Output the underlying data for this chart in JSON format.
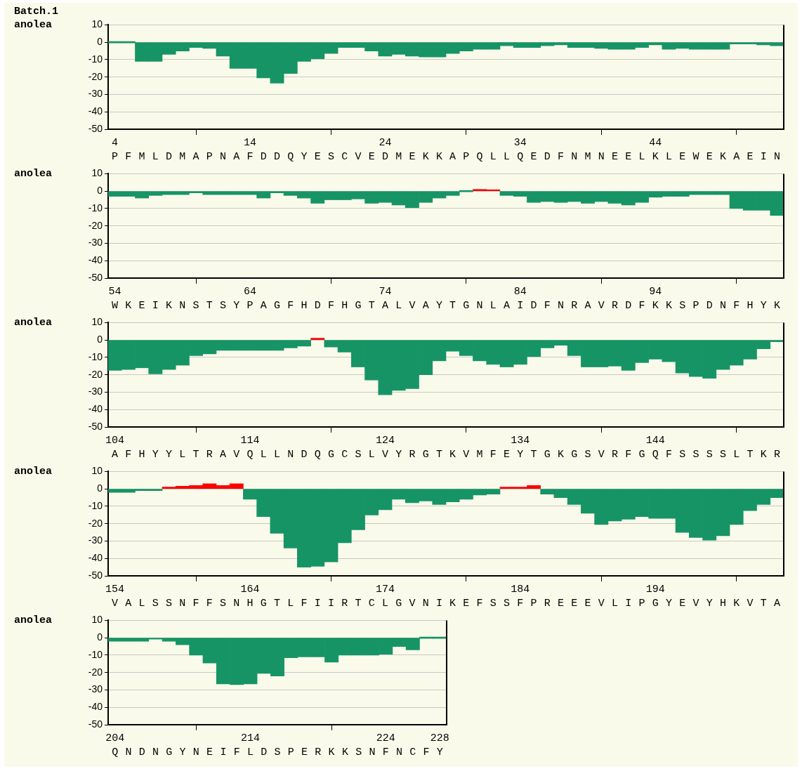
{
  "chart_data": [
    {
      "type": "bar",
      "title": "Batch.1",
      "ylabel": "anolea",
      "grid": "y",
      "categories": [
        "P",
        "F",
        "M",
        "L",
        "D",
        "M",
        "A",
        "P",
        "N",
        "A",
        "F",
        "D",
        "D",
        "Q",
        "Y",
        "E",
        "S",
        "C",
        "V",
        "E",
        "D",
        "M",
        "E",
        "K",
        "K",
        "A",
        "P",
        "Q",
        "L",
        "L",
        "Q",
        "E",
        "D",
        "F",
        "N",
        "M",
        "N",
        "E",
        "E",
        "L",
        "K",
        "L",
        "E",
        "W",
        "E",
        "K",
        "A",
        "E",
        "I",
        "N"
      ],
      "values": [
        0,
        0,
        -11,
        -11,
        -7,
        -5,
        -3,
        -3.5,
        -8,
        -15,
        -15,
        -20.5,
        -23.5,
        -18,
        -11,
        -9.5,
        -6.5,
        -3,
        -3,
        -5,
        -8,
        -7,
        -8,
        -8.5,
        -8.5,
        -6.5,
        -5,
        -4,
        -4,
        -2,
        -3,
        -3,
        -2,
        -1.5,
        -3,
        -3,
        -3.5,
        -4,
        -4,
        -3,
        -1.5,
        -4,
        -3.5,
        -4,
        -4,
        -4,
        -1,
        -1,
        -1.5,
        -2
      ],
      "colors": [
        "#169466",
        "#169466",
        "#169466",
        "#169466",
        "#169466",
        "#169466",
        "#169466",
        "#169466",
        "#169466",
        "#169466",
        "#169466",
        "#169466",
        "#169466",
        "#169466",
        "#169466",
        "#169466",
        "#169466",
        "#169466",
        "#169466",
        "#169466",
        "#169466",
        "#169466",
        "#169466",
        "#169466",
        "#169466",
        "#169466",
        "#169466",
        "#169466",
        "#169466",
        "#169466",
        "#169466",
        "#169466",
        "#169466",
        "#169466",
        "#169466",
        "#169466",
        "#169466",
        "#169466",
        "#169466",
        "#169466",
        "#169466",
        "#169466",
        "#169466",
        "#169466",
        "#169466",
        "#169466",
        "#169466",
        "#169466",
        "#169466",
        "#169466"
      ],
      "x2lim": [
        3.5,
        53.5
      ],
      "x2ticks": [
        4,
        {
          "value": 10,
          "label": null
        },
        14,
        {
          "value": 20,
          "label": null
        },
        24,
        {
          "value": 30,
          "label": null
        },
        34,
        {
          "value": 40,
          "label": null
        },
        44,
        {
          "value": 50,
          "label": null
        }
      ],
      "ylim": [
        -50,
        10
      ],
      "yticks": [
        -50,
        -40,
        -30,
        -20,
        -10,
        0,
        10
      ]
    },
    {
      "type": "bar",
      "ylabel": "anolea",
      "grid": "y",
      "categories": [
        "W",
        "K",
        "E",
        "I",
        "K",
        "N",
        "S",
        "T",
        "S",
        "Y",
        "P",
        "A",
        "G",
        "F",
        "H",
        "D",
        "F",
        "H",
        "G",
        "T",
        "A",
        "L",
        "V",
        "A",
        "Y",
        "T",
        "G",
        "N",
        "L",
        "A",
        "I",
        "D",
        "F",
        "N",
        "R",
        "A",
        "V",
        "R",
        "D",
        "F",
        "K",
        "K",
        "S",
        "P",
        "D",
        "N",
        "F",
        "H",
        "Y",
        "K"
      ],
      "values": [
        -3,
        -3,
        -4,
        -2.5,
        -2,
        -2,
        -1,
        -2,
        -2,
        -2,
        -2,
        -4,
        -1,
        -2.5,
        -4,
        -7,
        -5,
        -5,
        -4.5,
        -7,
        -6.5,
        -8,
        -9.5,
        -6.5,
        -4,
        -2.5,
        0,
        1,
        0.5,
        -2.5,
        -3,
        -6.5,
        -6,
        -6.5,
        -6,
        -7,
        -6,
        -7,
        -8,
        -6.5,
        -3.5,
        -3,
        -3,
        -2,
        -2,
        -2,
        -10,
        -11,
        -11,
        -14
      ],
      "colors": [
        "#169466",
        "#169466",
        "#169466",
        "#169466",
        "#169466",
        "#169466",
        "#169466",
        "#169466",
        "#169466",
        "#169466",
        "#169466",
        "#169466",
        "#169466",
        "#169466",
        "#169466",
        "#169466",
        "#169466",
        "#169466",
        "#169466",
        "#169466",
        "#169466",
        "#169466",
        "#169466",
        "#169466",
        "#169466",
        "#169466",
        "#169466",
        "#ff0000",
        "#ff0000",
        "#169466",
        "#169466",
        "#169466",
        "#169466",
        "#169466",
        "#169466",
        "#169466",
        "#169466",
        "#169466",
        "#169466",
        "#169466",
        "#169466",
        "#169466",
        "#169466",
        "#169466",
        "#169466",
        "#169466",
        "#169466",
        "#169466",
        "#169466",
        "#169466"
      ],
      "x2lim": [
        53.5,
        103.5
      ],
      "x2ticks": [
        54,
        {
          "value": 60,
          "label": null
        },
        64,
        {
          "value": 70,
          "label": null
        },
        74,
        {
          "value": 80,
          "label": null
        },
        84,
        {
          "value": 90,
          "label": null
        },
        94,
        {
          "value": 100,
          "label": null
        }
      ],
      "ylim": [
        -50,
        10
      ],
      "yticks": [
        -50,
        -40,
        -30,
        -20,
        -10,
        0,
        10
      ]
    },
    {
      "type": "bar",
      "ylabel": "anolea",
      "grid": "y",
      "categories": [
        "A",
        "F",
        "H",
        "Y",
        "Y",
        "L",
        "T",
        "R",
        "A",
        "V",
        "Q",
        "L",
        "L",
        "N",
        "D",
        "Q",
        "G",
        "C",
        "S",
        "L",
        "V",
        "Y",
        "R",
        "G",
        "T",
        "K",
        "V",
        "M",
        "F",
        "E",
        "Y",
        "T",
        "G",
        "K",
        "G",
        "S",
        "V",
        "R",
        "F",
        "G",
        "Q",
        "F",
        "S",
        "S",
        "S",
        "S",
        "L",
        "T",
        "K",
        "R"
      ],
      "values": [
        -17.5,
        -17,
        -16,
        -19.5,
        -17,
        -14.5,
        -9,
        -8,
        -6,
        -6,
        -6,
        -6,
        -6,
        -4.5,
        -3.5,
        1,
        -4,
        -7,
        -15.5,
        -23,
        -31.5,
        -29,
        -28,
        -20,
        -12,
        -6.5,
        -9,
        -12,
        -14,
        -15.5,
        -14,
        -9.5,
        -4.5,
        -3,
        -9,
        -15.5,
        -15.5,
        -15,
        -17.5,
        -13,
        -11,
        -12.5,
        -19,
        -21,
        -22,
        -17,
        -14.5,
        -11,
        -5,
        -1
      ],
      "colors": [
        "#169466",
        "#169466",
        "#169466",
        "#169466",
        "#169466",
        "#169466",
        "#169466",
        "#169466",
        "#169466",
        "#169466",
        "#169466",
        "#169466",
        "#169466",
        "#169466",
        "#169466",
        "#ff0000",
        "#169466",
        "#169466",
        "#169466",
        "#169466",
        "#169466",
        "#169466",
        "#169466",
        "#169466",
        "#169466",
        "#169466",
        "#169466",
        "#169466",
        "#169466",
        "#169466",
        "#169466",
        "#169466",
        "#169466",
        "#169466",
        "#169466",
        "#169466",
        "#169466",
        "#169466",
        "#169466",
        "#169466",
        "#169466",
        "#169466",
        "#169466",
        "#169466",
        "#169466",
        "#169466",
        "#169466",
        "#169466",
        "#169466",
        "#169466"
      ],
      "x2lim": [
        103.5,
        153.5
      ],
      "x2ticks": [
        104,
        {
          "value": 110,
          "label": null
        },
        114,
        {
          "value": 120,
          "label": null
        },
        124,
        {
          "value": 130,
          "label": null
        },
        134,
        {
          "value": 140,
          "label": null
        },
        144,
        {
          "value": 150,
          "label": null
        }
      ],
      "ylim": [
        -50,
        10
      ],
      "yticks": [
        -50,
        -40,
        -30,
        -20,
        -10,
        0,
        10
      ]
    },
    {
      "type": "bar",
      "ylabel": "anolea",
      "grid": "y",
      "categories": [
        "V",
        "A",
        "L",
        "S",
        "S",
        "N",
        "F",
        "F",
        "S",
        "N",
        "H",
        "G",
        "T",
        "L",
        "F",
        "I",
        "I",
        "R",
        "T",
        "C",
        "L",
        "G",
        "V",
        "N",
        "I",
        "K",
        "E",
        "F",
        "S",
        "S",
        "F",
        "P",
        "R",
        "E",
        "E",
        "E",
        "V",
        "L",
        "I",
        "P",
        "G",
        "Y",
        "E",
        "V",
        "Y",
        "H",
        "K",
        "V",
        "T",
        "A"
      ],
      "values": [
        -2,
        -2,
        -1,
        -1,
        1,
        1.5,
        2,
        3,
        2,
        3,
        -6,
        -16,
        -25.5,
        -34,
        -45,
        -44.5,
        -42,
        -31,
        -23.5,
        -15,
        -12,
        -6,
        -8,
        -7,
        -9,
        -7.5,
        -6,
        -3.5,
        -3,
        1,
        1,
        2,
        -3,
        -5,
        -9,
        -14,
        -20.5,
        -18.5,
        -17.5,
        -16,
        -17,
        -17,
        -25,
        -28,
        -29.5,
        -27,
        -20.5,
        -12.5,
        -9,
        -5
      ],
      "colors": [
        "#169466",
        "#169466",
        "#169466",
        "#169466",
        "#ff0000",
        "#ff0000",
        "#ff0000",
        "#ff0000",
        "#ff0000",
        "#ff0000",
        "#169466",
        "#169466",
        "#169466",
        "#169466",
        "#169466",
        "#169466",
        "#169466",
        "#169466",
        "#169466",
        "#169466",
        "#169466",
        "#169466",
        "#169466",
        "#169466",
        "#169466",
        "#169466",
        "#169466",
        "#169466",
        "#169466",
        "#ff0000",
        "#ff0000",
        "#ff0000",
        "#169466",
        "#169466",
        "#169466",
        "#169466",
        "#169466",
        "#169466",
        "#169466",
        "#169466",
        "#169466",
        "#169466",
        "#169466",
        "#169466",
        "#169466",
        "#169466",
        "#169466",
        "#169466",
        "#169466",
        "#169466"
      ],
      "x2lim": [
        153.5,
        203.5
      ],
      "x2ticks": [
        154,
        {
          "value": 160,
          "label": null
        },
        164,
        {
          "value": 170,
          "label": null
        },
        174,
        {
          "value": 180,
          "label": null
        },
        184,
        {
          "value": 190,
          "label": null
        },
        194,
        {
          "value": 200,
          "label": null
        }
      ],
      "ylim": [
        -50,
        10
      ],
      "yticks": [
        -50,
        -40,
        -30,
        -20,
        -10,
        0,
        10
      ]
    },
    {
      "type": "bar",
      "ylabel": "anolea",
      "grid": "y",
      "categories": [
        "Q",
        "N",
        "D",
        "N",
        "G",
        "Y",
        "N",
        "E",
        "I",
        "F",
        "L",
        "D",
        "S",
        "P",
        "E",
        "R",
        "K",
        "K",
        "S",
        "N",
        "F",
        "N",
        "C",
        "F",
        "Y"
      ],
      "values": [
        -2,
        -2,
        -2,
        -0.5,
        -2,
        -4,
        -10,
        -14.5,
        -26.5,
        -27,
        -26.5,
        -20.5,
        -22,
        -11.5,
        -11,
        -11,
        -14,
        -10,
        -10,
        -10,
        -9.5,
        -5,
        -7,
        0,
        0
      ],
      "colors": [
        "#169466",
        "#169466",
        "#169466",
        "#169466",
        "#169466",
        "#169466",
        "#169466",
        "#169466",
        "#169466",
        "#169466",
        "#169466",
        "#169466",
        "#169466",
        "#169466",
        "#169466",
        "#169466",
        "#169466",
        "#169466",
        "#169466",
        "#169466",
        "#169466",
        "#169466",
        "#169466",
        "#169466",
        "#169466"
      ],
      "x2lim": [
        203.5,
        228.5
      ],
      "x2ticks": [
        204,
        {
          "value": 210,
          "label": null
        },
        214,
        {
          "value": 220,
          "label": null
        },
        224,
        228
      ],
      "ylim": [
        -50,
        10
      ],
      "yticks": [
        -50,
        -40,
        -30,
        -20,
        -10,
        0,
        10
      ]
    }
  ]
}
